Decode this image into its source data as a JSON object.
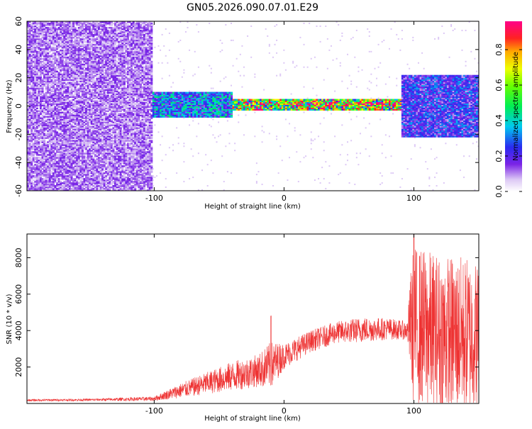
{
  "title": "GN05.2026.090.07.01.E29",
  "chart_data": [
    {
      "type": "heatmap",
      "name": "spectrogram",
      "xlabel": "Height of straight line (km)",
      "ylabel": "Frequency (Hz)",
      "xlim": [
        -198,
        150
      ],
      "ylim": [
        -60,
        60
      ],
      "xticks": [
        -100,
        0,
        100
      ],
      "yticks": [
        -60,
        -40,
        -20,
        0,
        20,
        40,
        60
      ],
      "colorbar": {
        "label": "Normalized spectral amplitude",
        "range": [
          0.0,
          0.96
        ],
        "ticks": [
          0.0,
          0.2,
          0.4,
          0.6,
          0.8
        ]
      },
      "regions": [
        {
          "x_from": -198,
          "x_to": -102,
          "freq_from": -60,
          "freq_to": 60,
          "amplitude": 0.12,
          "description": "broadband noise"
        },
        {
          "x_from": -102,
          "x_to": -40,
          "freq_from": -8,
          "freq_to": 10,
          "amplitude": 0.35
        },
        {
          "x_from": -40,
          "x_to": 90,
          "freq_from": -3,
          "freq_to": 5,
          "amplitude": 0.7
        },
        {
          "x_from": -20,
          "x_to": 90,
          "freq_from": 1,
          "freq_to": 3,
          "amplitude": 0.9
        },
        {
          "x_from": 90,
          "x_to": 150,
          "freq_from": -22,
          "freq_to": 22,
          "amplitude": 0.25
        }
      ]
    },
    {
      "type": "line",
      "name": "snr",
      "xlabel": "Height of straight line (km)",
      "ylabel": "SNR (10 * v/v)",
      "xlim": [
        -198,
        150
      ],
      "ylim": [
        0,
        9300
      ],
      "xticks": [
        -100,
        0,
        100
      ],
      "yticks": [
        2000,
        4000,
        6000,
        8000
      ],
      "color": "#ee3333",
      "series": [
        {
          "name": "SNR",
          "envelope": {
            "x": [
              -198,
              -150,
              -100,
              -80,
              -60,
              -40,
              -20,
              -10,
              0,
              20,
              40,
              60,
              80,
              95,
              98,
              100,
              120,
              140,
              150
            ],
            "mean": [
              180,
              200,
              260,
              700,
              1100,
              1500,
              1800,
              2100,
              2600,
              3400,
              3900,
              4050,
              4100,
              4000,
              4300,
              4300,
              3800,
              3800,
              3700
            ],
            "spread": [
              60,
              60,
              120,
              400,
              600,
              800,
              900,
              1300,
              700,
              600,
              600,
              700,
              600,
              500,
              3500,
              4400,
              4400,
              4300,
              4200
            ]
          },
          "annotations": [
            {
              "x": -10,
              "value": 4800,
              "note": "spike"
            },
            {
              "x": 100,
              "value": 9300,
              "note": "peak"
            }
          ]
        }
      ]
    }
  ]
}
